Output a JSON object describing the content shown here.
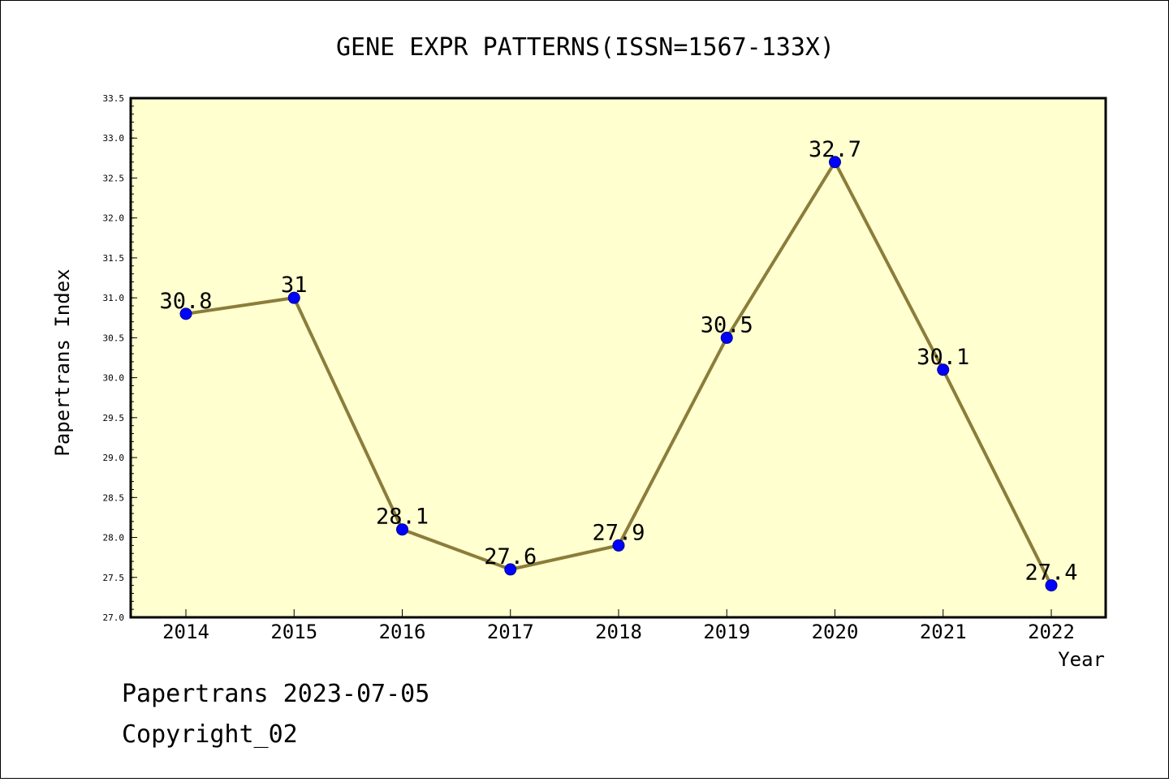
{
  "chart_data": {
    "type": "line",
    "title": "GENE EXPR PATTERNS(ISSN=1567-133X)",
    "xlabel": "Year",
    "ylabel": "Papertrans Index",
    "categories": [
      "2014",
      "2015",
      "2016",
      "2017",
      "2018",
      "2019",
      "2020",
      "2021",
      "2022"
    ],
    "values": [
      30.8,
      31,
      28.1,
      27.6,
      27.9,
      30.5,
      32.7,
      30.1,
      27.4
    ],
    "data_labels": [
      "30.8",
      "31",
      "28.1",
      "27.6",
      "27.9",
      "30.5",
      "32.7",
      "30.1",
      "27.4"
    ],
    "ylim": [
      27.0,
      33.5
    ],
    "yticks": [
      "27.0",
      "27.5",
      "28.0",
      "28.5",
      "29.0",
      "29.5",
      "30.0",
      "30.5",
      "31.0",
      "31.5",
      "32.0",
      "32.5",
      "33.0",
      "33.5"
    ],
    "grid": false,
    "legend": "none",
    "colors": {
      "plot_background": "#ffffd0",
      "line": "#8b7d3a",
      "marker": "#0000ff"
    }
  },
  "footer": {
    "date_text": "Papertrans 2023-07-05",
    "copyright_text": "Copyright_02"
  }
}
